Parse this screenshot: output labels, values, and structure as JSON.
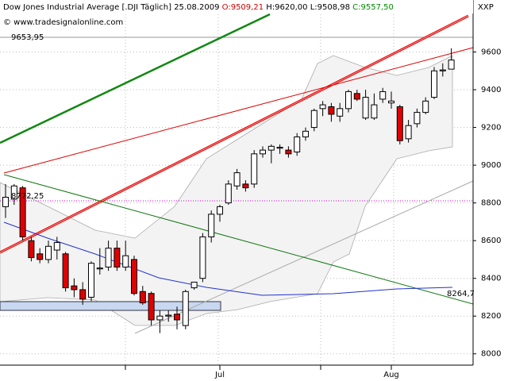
{
  "chart_data": {
    "type": "candlestick",
    "title": "Dow Jones Industrial Average [.DJI  Täglich] 25.08.2009",
    "ohlc_labels": [
      "O:9509,21",
      "H:9620,00",
      "L:9508,98",
      "C:9557,50"
    ],
    "watermark": "© www.tradesignalonline.com",
    "symbol": "XXP",
    "annotations": [
      "9653,95",
      "8772,25",
      "8264,7"
    ],
    "categories": [
      null,
      null,
      null,
      null,
      null,
      null,
      null,
      null,
      null,
      null,
      null,
      null,
      null,
      null,
      null,
      null,
      null,
      null,
      null,
      null,
      null,
      null,
      null,
      null,
      null,
      "Jul",
      null,
      null,
      null,
      null,
      null,
      null,
      null,
      null,
      null,
      null,
      null,
      null,
      null,
      null,
      null,
      null,
      null,
      null,
      null,
      "Aug",
      null,
      null,
      null,
      null,
      null,
      null,
      null
    ],
    "open": [
      8780,
      8820,
      8880,
      8600,
      8530,
      8500,
      8550,
      8530,
      8360,
      8340,
      8300,
      8450,
      8460,
      8560,
      8460,
      8500,
      8330,
      8320,
      8180,
      8200,
      8210,
      8150,
      8350,
      8400,
      8620,
      8740,
      8800,
      8890,
      8900,
      8900,
      9060,
      9080,
      9090,
      9080,
      9070,
      9150,
      9200,
      9300,
      9310,
      9260,
      9300,
      9380,
      9250,
      9250,
      9350,
      9330,
      9310,
      9140,
      9220,
      9280,
      9360,
      9500,
      9509.21
    ],
    "high": [
      8900,
      8900,
      8890,
      8620,
      8560,
      8600,
      8620,
      8540,
      8400,
      8380,
      8490,
      8560,
      8600,
      8600,
      8600,
      8520,
      8360,
      8330,
      8230,
      8230,
      8250,
      8340,
      8380,
      8640,
      8760,
      8790,
      8920,
      8980,
      8920,
      9080,
      9100,
      9110,
      9110,
      9100,
      9170,
      9200,
      9300,
      9340,
      9330,
      9330,
      9400,
      9400,
      9400,
      9380,
      9410,
      9390,
      9320,
      9240,
      9300,
      9360,
      9520,
      9540,
      9620
    ],
    "low": [
      8720,
      8790,
      8600,
      8490,
      8480,
      8480,
      8500,
      8330,
      8300,
      8260,
      8280,
      8420,
      8440,
      8440,
      8440,
      8310,
      8260,
      8150,
      8110,
      8170,
      8130,
      8130,
      8340,
      8380,
      8590,
      8700,
      8790,
      8870,
      8860,
      8880,
      9040,
      9010,
      9060,
      9040,
      9050,
      9130,
      9180,
      9260,
      9230,
      9230,
      9280,
      9340,
      9240,
      9240,
      9330,
      9300,
      9110,
      9120,
      9200,
      9270,
      9350,
      9470,
      9508.98
    ],
    "close": [
      8830,
      8890,
      8620,
      8510,
      8500,
      8570,
      8590,
      8350,
      8340,
      8290,
      8480,
      8455,
      8560,
      8460,
      8520,
      8320,
      8270,
      8180,
      8200,
      8205,
      8180,
      8330,
      8380,
      8620,
      8740,
      8780,
      8900,
      8960,
      8880,
      9060,
      9080,
      9100,
      9095,
      9060,
      9150,
      9180,
      9290,
      9320,
      9270,
      9300,
      9390,
      9350,
      9360,
      9320,
      9390,
      9340,
      9130,
      9210,
      9280,
      9340,
      9500,
      9505,
      9557.5
    ],
    "up_color": "#ffffff",
    "down_color": "#e00000",
    "ylim": [
      7940,
      9800
    ],
    "yticks": [
      8000,
      8200,
      8400,
      8600,
      8800,
      9000,
      9200,
      9400,
      9600
    ],
    "grid": true
  }
}
